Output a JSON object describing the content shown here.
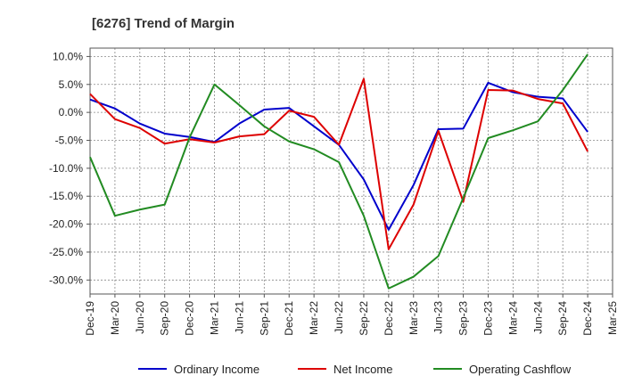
{
  "chart_data": {
    "type": "line",
    "title": "[6276]  Trend of Margin",
    "xlabel": "",
    "ylabel": "",
    "categories": [
      "Dec-19",
      "Mar-20",
      "Jun-20",
      "Sep-20",
      "Dec-20",
      "Mar-21",
      "Jun-21",
      "Sep-21",
      "Dec-21",
      "Mar-22",
      "Jun-22",
      "Sep-22",
      "Dec-22",
      "Mar-23",
      "Jun-23",
      "Sep-23",
      "Dec-23",
      "Mar-24",
      "Jun-24",
      "Sep-24",
      "Dec-24",
      "Mar-25"
    ],
    "ylim": [
      -32.5,
      11.5
    ],
    "yticks": [
      10,
      5,
      0,
      -5,
      -10,
      -15,
      -20,
      -25,
      -30
    ],
    "ytick_labels": [
      "10.0%",
      "5.0%",
      "0.0%",
      "-5.0%",
      "-10.0%",
      "-15.0%",
      "-20.0%",
      "-25.0%",
      "-30.0%"
    ],
    "grid": true,
    "legend_position": "bottom",
    "series": [
      {
        "name": "Ordinary Income",
        "color": "#0000cc",
        "values": [
          2.3,
          0.7,
          -2.0,
          -3.8,
          -4.4,
          -5.3,
          -2.0,
          0.5,
          0.8,
          -2.5,
          -5.8,
          -12.0,
          -21.0,
          -13.0,
          -3.0,
          -2.9,
          5.3,
          3.6,
          2.8,
          2.5,
          -3.5,
          null
        ]
      },
      {
        "name": "Net Income",
        "color": "#dd0000",
        "values": [
          3.3,
          -1.2,
          -2.8,
          -5.6,
          -4.8,
          -5.4,
          -4.3,
          -3.9,
          0.3,
          -0.8,
          -5.8,
          6.0,
          -24.5,
          -16.5,
          -3.3,
          -16.0,
          4.0,
          3.9,
          2.4,
          1.6,
          -7.0,
          null
        ]
      },
      {
        "name": "Operating Cashflow",
        "color": "#228B22",
        "values": [
          -8.0,
          -18.5,
          -17.4,
          -16.5,
          -4.5,
          5.0,
          1.3,
          -2.5,
          -5.2,
          -6.6,
          -8.9,
          -18.5,
          -31.5,
          -29.4,
          -25.7,
          -15.3,
          -4.6,
          -3.2,
          -1.6,
          4.0,
          10.4,
          null
        ]
      }
    ]
  }
}
